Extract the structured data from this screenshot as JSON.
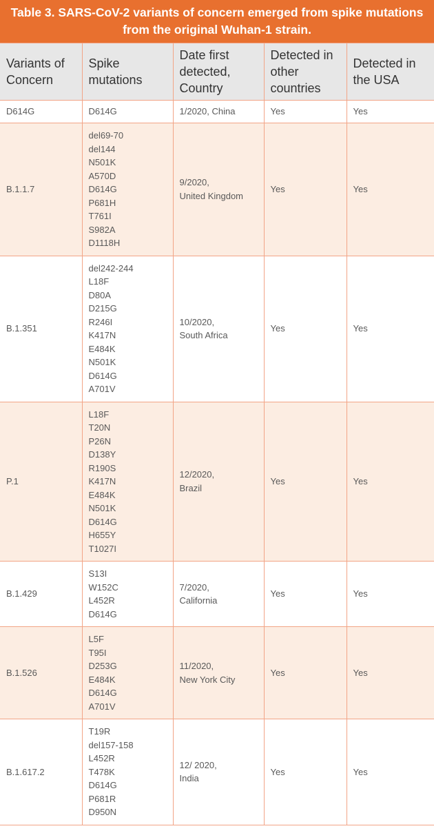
{
  "title": "Table 3. SARS-CoV-2 variants of concern emerged from spike mutations from the original Wuhan-1 strain.",
  "colors": {
    "title_bg": "#e8702f",
    "header_bg": "#e7e7e7",
    "row_alt_bg": "#fcede2",
    "border": "#f2a486"
  },
  "columns": [
    "Variants of Concern",
    "Spike mutations",
    "Date first detected, Country",
    "Detected in other countries",
    "Detected in the USA"
  ],
  "rows": [
    {
      "variant": "D614G",
      "mutations": [
        "D614G"
      ],
      "date": "1/2020, China",
      "other": "Yes",
      "usa": "Yes"
    },
    {
      "variant": "B.1.1.7",
      "mutations": [
        "del69-70",
        "del144",
        "N501K",
        "A570D",
        "D614G",
        "P681H",
        "T761I",
        "S982A",
        "D1118H"
      ],
      "date": "9/2020, United Kingdom",
      "other": "Yes",
      "usa": "Yes"
    },
    {
      "variant": "B.1.351",
      "mutations": [
        "del242-244",
        "L18F",
        "D80A",
        "D215G",
        "R246I",
        "K417N",
        "E484K",
        "N501K",
        "D614G",
        "A701V"
      ],
      "date": "10/2020, South Africa",
      "other": "Yes",
      "usa": "Yes"
    },
    {
      "variant": "P.1",
      "mutations": [
        "L18F",
        "T20N",
        "P26N",
        "D138Y",
        "R190S",
        "K417N",
        "E484K",
        "N501K",
        "D614G",
        "H655Y",
        "T1027I"
      ],
      "date": "12/2020, Brazil",
      "other": "Yes",
      "usa": "Yes"
    },
    {
      "variant": "B.1.429",
      "mutations": [
        "S13I",
        "W152C",
        "L452R",
        "D614G"
      ],
      "date": "7/2020, California",
      "other": "Yes",
      "usa": "Yes"
    },
    {
      "variant": "B.1.526",
      "mutations": [
        "L5F",
        "T95I",
        "D253G",
        "E484K",
        "D614G",
        "A701V"
      ],
      "date": "11/2020, New York City",
      "other": "Yes",
      "usa": "Yes"
    },
    {
      "variant": "B.1.617.2",
      "mutations": [
        "T19R",
        "del157-158",
        "L452R",
        "T478K",
        "D614G",
        "P681R",
        "D950N"
      ],
      "date": "12/ 2020, India",
      "other": "Yes",
      "usa": "Yes"
    }
  ]
}
